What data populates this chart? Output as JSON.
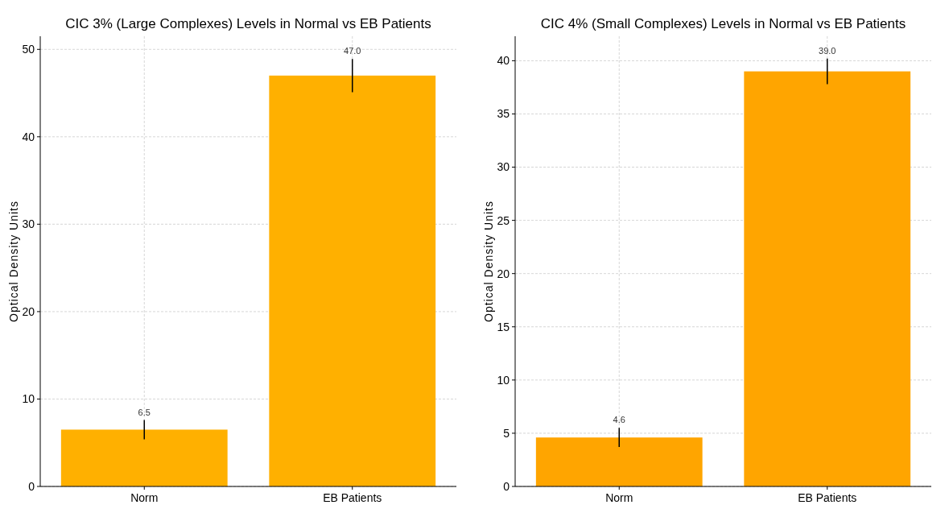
{
  "chart_data": [
    {
      "type": "bar",
      "title": "CIC 3% (Large Complexes) Levels in Normal vs EB Patients",
      "ylabel": "Optical Density Units",
      "categories": [
        "Norm",
        "EB Patients"
      ],
      "values": [
        6.5,
        47.0
      ],
      "errors": [
        1.1,
        1.9
      ],
      "value_labels": [
        "6.5",
        "47.0"
      ],
      "color": "#ffb000",
      "ylim": [
        0,
        51.5
      ],
      "yticks": [
        0,
        10,
        20,
        30,
        40,
        50
      ],
      "grid": true
    },
    {
      "type": "bar",
      "title": "CIC 4% (Small Complexes) Levels in Normal vs EB Patients",
      "ylabel": "Optical Density Units",
      "categories": [
        "Norm",
        "EB Patients"
      ],
      "values": [
        4.6,
        39.0
      ],
      "errors": [
        0.9,
        1.2
      ],
      "value_labels": [
        "4.6",
        "39.0"
      ],
      "color": "#ffa500",
      "ylim": [
        0,
        42.3
      ],
      "yticks": [
        0,
        5,
        10,
        15,
        20,
        25,
        30,
        35,
        40
      ],
      "grid": true
    }
  ]
}
